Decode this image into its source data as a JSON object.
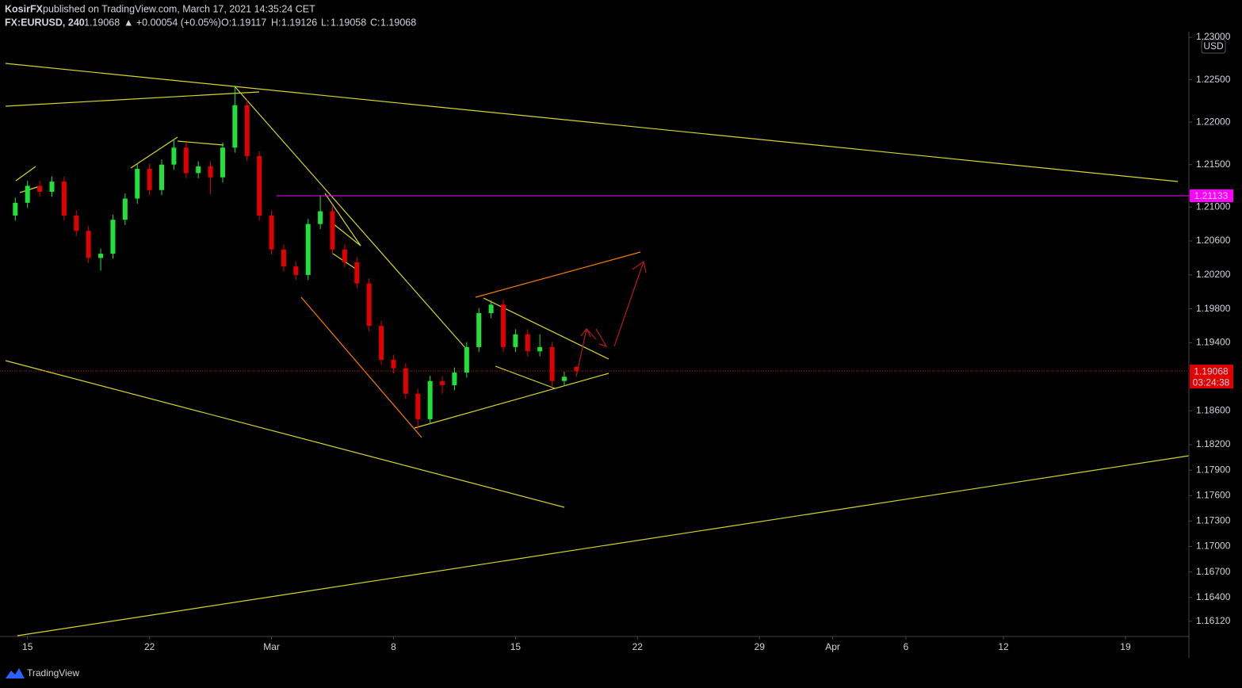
{
  "header": {
    "author": "KosirFX",
    "published": "published on TradingView.com, March 17, 2021 14:35:24 CET",
    "symbol": "FX:EURUSD, 240",
    "price": "1.19068",
    "change": "▲ +0.00054 (+0.05%)",
    "o_label": "O:",
    "o_value": "1.19117",
    "h_label": "H:",
    "h_value": "1.19126",
    "l_label": "L:",
    "l_value": "1.19058",
    "c_label": "C:",
    "c_value": "1.19068"
  },
  "currency": "USD",
  "footer": "TradingView",
  "chart_data": {
    "type": "candlestick",
    "x": [
      -0.5,
      0,
      0.5,
      1,
      1.5,
      2,
      2.5,
      3,
      3.5,
      4,
      4.5,
      5,
      5.5,
      6,
      6.5,
      7,
      7.5,
      8,
      8.5,
      9,
      9.5,
      10,
      10.5,
      11,
      11.5,
      12,
      12.5,
      13,
      13.5,
      14,
      14.5,
      15,
      15.5,
      16,
      16.5,
      17,
      17.5,
      18,
      18.5,
      19,
      19.5,
      20,
      20.5,
      21,
      21.5,
      22,
      22.5
    ],
    "open": [
      1.209,
      1.2105,
      1.2125,
      1.2118,
      1.213,
      1.209,
      1.2072,
      1.204,
      1.2045,
      1.2085,
      1.211,
      1.2145,
      1.212,
      1.215,
      1.217,
      1.214,
      1.2148,
      1.2135,
      1.217,
      1.222,
      1.216,
      1.209,
      1.205,
      1.203,
      1.202,
      1.208,
      1.2095,
      1.205,
      1.2035,
      1.201,
      1.196,
      1.192,
      1.191,
      1.188,
      1.185,
      1.1895,
      1.189,
      1.1905,
      1.1935,
      1.1975,
      1.1985,
      1.1935,
      1.195,
      1.193,
      1.1935,
      1.1895,
      1.19117
    ],
    "high": [
      1.2111,
      1.2131,
      1.2131,
      1.2136,
      1.2136,
      1.2096,
      1.2078,
      1.2051,
      1.2091,
      1.2116,
      1.2151,
      1.2151,
      1.2156,
      1.218,
      1.2176,
      1.2154,
      1.2154,
      1.2176,
      1.2243,
      1.2226,
      1.2166,
      1.2096,
      1.2056,
      1.2036,
      1.2086,
      1.2113,
      1.2101,
      1.2056,
      1.2041,
      1.2016,
      1.1966,
      1.1926,
      1.1916,
      1.1886,
      1.1901,
      1.1901,
      1.1911,
      1.1941,
      1.1981,
      1.199,
      1.1991,
      1.1956,
      1.1956,
      1.195,
      1.1941,
      1.1906,
      1.19126
    ],
    "low": [
      1.2084,
      1.2099,
      1.2112,
      1.2112,
      1.2084,
      1.2066,
      1.2034,
      1.2025,
      1.2039,
      1.2079,
      1.2104,
      1.2114,
      1.2114,
      1.2144,
      1.2134,
      1.2134,
      1.2115,
      1.2129,
      1.2164,
      1.2154,
      1.2084,
      1.2044,
      1.2024,
      1.2014,
      1.2014,
      1.2074,
      1.2044,
      1.2029,
      1.2004,
      1.1954,
      1.1914,
      1.1904,
      1.1874,
      1.1838,
      1.1844,
      1.188,
      1.1884,
      1.1899,
      1.1929,
      1.1969,
      1.1929,
      1.1929,
      1.1924,
      1.1924,
      1.1889,
      1.1889,
      1.19058
    ],
    "close": [
      1.2105,
      1.2125,
      1.2118,
      1.213,
      1.209,
      1.2072,
      1.204,
      1.2045,
      1.2085,
      1.211,
      1.2145,
      1.212,
      1.215,
      1.217,
      1.214,
      1.2148,
      1.2135,
      1.217,
      1.222,
      1.216,
      1.209,
      1.205,
      1.203,
      1.202,
      1.208,
      1.2095,
      1.205,
      1.2035,
      1.201,
      1.196,
      1.192,
      1.191,
      1.188,
      1.185,
      1.1895,
      1.189,
      1.1905,
      1.1935,
      1.1975,
      1.1985,
      1.1935,
      1.195,
      1.193,
      1.1935,
      1.1895,
      1.19,
      1.19068
    ],
    "up_color": "#22e03a",
    "down_color": "#e00000",
    "xlim": [
      -0.9,
      47.6
    ],
    "xticks": [
      {
        "value": 0,
        "label": "15"
      },
      {
        "value": 5,
        "label": "22"
      },
      {
        "value": 10,
        "label": "Mar"
      },
      {
        "value": 15,
        "label": "8"
      },
      {
        "value": 20,
        "label": "15"
      },
      {
        "value": 25,
        "label": "22"
      },
      {
        "value": 30,
        "label": "29"
      },
      {
        "value": 33,
        "label": "Apr"
      },
      {
        "value": 36,
        "label": "6"
      },
      {
        "value": 40,
        "label": "12"
      },
      {
        "value": 45,
        "label": "19"
      }
    ],
    "ylim": [
      1.1594,
      1.2301
    ],
    "yticks": [
      {
        "value": 1.23,
        "label": "1.23000"
      },
      {
        "value": 1.225,
        "label": "1.22500"
      },
      {
        "value": 1.22,
        "label": "1.22000"
      },
      {
        "value": 1.215,
        "label": "1.21500"
      },
      {
        "value": 1.21,
        "label": "1.21000"
      },
      {
        "value": 1.206,
        "label": "1.20600"
      },
      {
        "value": 1.202,
        "label": "1.20200"
      },
      {
        "value": 1.198,
        "label": "1.19800"
      },
      {
        "value": 1.194,
        "label": "1.19400"
      },
      {
        "value": 1.186,
        "label": "1.18600"
      },
      {
        "value": 1.182,
        "label": "1.18200"
      },
      {
        "value": 1.179,
        "label": "1.17900"
      },
      {
        "value": 1.176,
        "label": "1.17600"
      },
      {
        "value": 1.173,
        "label": "1.17300"
      },
      {
        "value": 1.17,
        "label": "1.17000"
      },
      {
        "value": 1.167,
        "label": "1.16700"
      },
      {
        "value": 1.164,
        "label": "1.16400"
      },
      {
        "value": 1.1612,
        "label": "1.16120"
      }
    ],
    "level": {
      "value": 1.21133,
      "color": "#ff00ff"
    },
    "last_price": {
      "value": 1.19068,
      "countdown": "03:24:38",
      "color": "#e00000"
    }
  }
}
